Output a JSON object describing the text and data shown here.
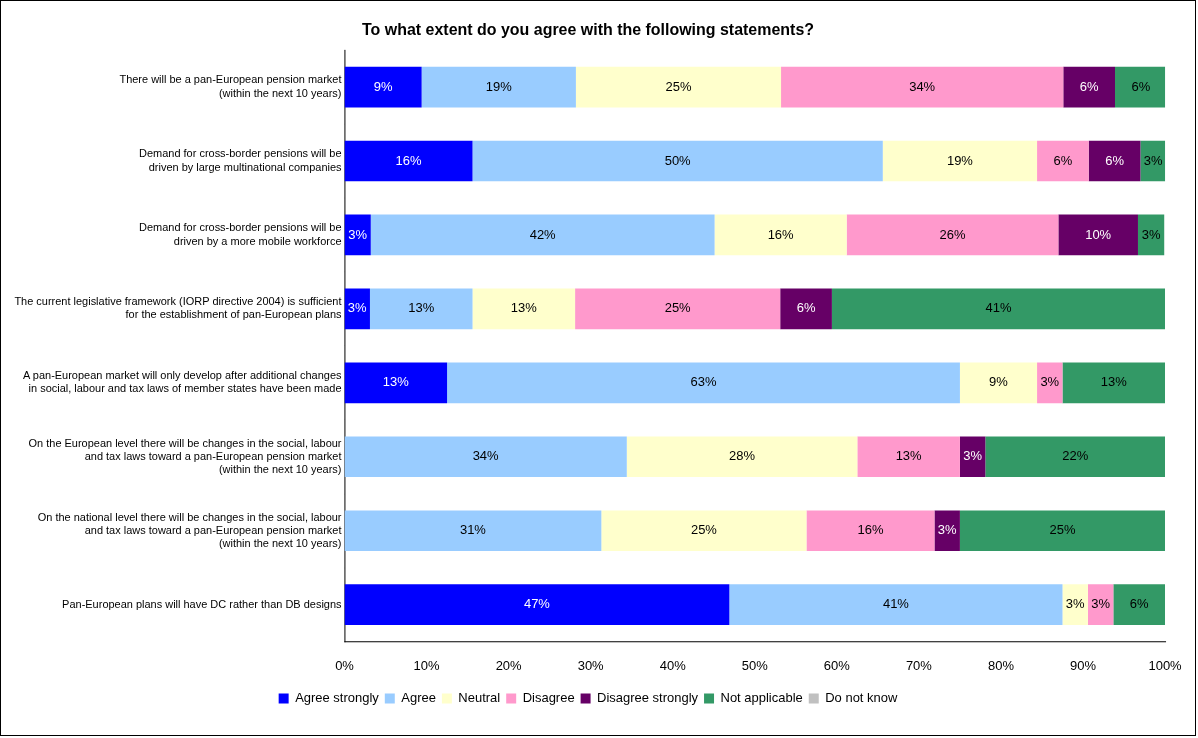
{
  "chart_data": {
    "type": "bar",
    "orientation": "horizontal",
    "stacked": true,
    "title": "To what extent do you agree with the following statements?",
    "categories": [
      "There will be a pan-European pension market\n(within the next 10 years)",
      "Demand for cross-border pensions will be\ndriven by large multinational companies",
      "Demand for cross-border pensions will be\ndriven by a more mobile workforce",
      "The current legislative framework (IORP directive 2004) is sufficient\nfor the establishment of pan-European plans",
      "A pan-European market will only develop after additional changes\nin social, labour and tax laws of member states have been made",
      "On the European level there will be changes in the social, labour\nand tax laws toward a pan-European pension market\n(within the next 10 years)",
      "On the national level there will be changes in the social, labour\nand tax laws toward a pan-European pension market\n(within the next 10 years)",
      "Pan-European plans will have DC rather than DB designs"
    ],
    "series": [
      {
        "name": "Agree strongly",
        "color": "#0000ff",
        "values": [
          9.4,
          15.6,
          3.2,
          3.1,
          12.5,
          0,
          0,
          46.9
        ],
        "value_labels": [
          "9%",
          "16%",
          "3%",
          "3%",
          "13%",
          null,
          null,
          "47%"
        ]
      },
      {
        "name": "Agree",
        "color": "#99ccff",
        "values": [
          18.8,
          50,
          41.9,
          12.5,
          62.5,
          34.4,
          31.3,
          40.6
        ],
        "value_labels": [
          "19%",
          "50%",
          "42%",
          "13%",
          "63%",
          "34%",
          "31%",
          "41%"
        ]
      },
      {
        "name": "Neutral",
        "color": "#ffffcc",
        "values": [
          25,
          18.8,
          16.1,
          12.5,
          9.4,
          28.1,
          25,
          3.1
        ],
        "value_labels": [
          "25%",
          "19%",
          "16%",
          "13%",
          "9%",
          "28%",
          "25%",
          "3%"
        ]
      },
      {
        "name": "Disagree",
        "color": "#ff99cc",
        "values": [
          34.4,
          6.3,
          25.8,
          25,
          3.1,
          12.5,
          15.6,
          3.1
        ],
        "value_labels": [
          "34%",
          "6%",
          "26%",
          "25%",
          "3%",
          "13%",
          "16%",
          "3%"
        ]
      },
      {
        "name": "Disagree strongly",
        "color": "#660066",
        "values": [
          6.3,
          6.3,
          9.7,
          6.3,
          0,
          3.1,
          3.1,
          0
        ],
        "value_labels": [
          "6%",
          "6%",
          "10%",
          "6%",
          null,
          "3%",
          "3%",
          null
        ]
      },
      {
        "name": "Not applicable",
        "color": "#339966",
        "values": [
          6.3,
          3.1,
          3.2,
          40.6,
          12.5,
          21.9,
          25,
          6.3
        ],
        "value_labels": [
          "6%",
          "3%",
          "3%",
          "41%",
          "13%",
          "22%",
          "25%",
          "6%"
        ]
      },
      {
        "name": "Do not know",
        "color": "#c0c0c0",
        "values": [
          0,
          0,
          0,
          0,
          0,
          0,
          0,
          0
        ],
        "value_labels": [
          null,
          null,
          null,
          null,
          null,
          null,
          null,
          null
        ]
      }
    ],
    "xlim": [
      0,
      100
    ],
    "xticks": [
      {
        "value": 0,
        "label": "0%"
      },
      {
        "value": 10,
        "label": "10%"
      },
      {
        "value": 20,
        "label": "20%"
      },
      {
        "value": 30,
        "label": "30%"
      },
      {
        "value": 40,
        "label": "40%"
      },
      {
        "value": 50,
        "label": "50%"
      },
      {
        "value": 60,
        "label": "60%"
      },
      {
        "value": 70,
        "label": "70%"
      },
      {
        "value": 80,
        "label": "80%"
      },
      {
        "value": 90,
        "label": "90%"
      },
      {
        "value": 100,
        "label": "100%"
      }
    ],
    "grid": false,
    "legend": "bottom"
  }
}
